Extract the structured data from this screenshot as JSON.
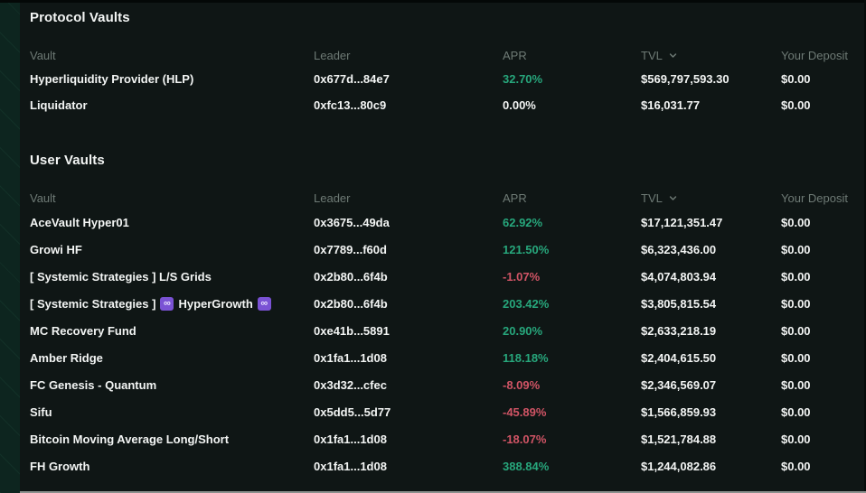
{
  "colors": {
    "positive": "#27a77c",
    "negative": "#d05465",
    "header_text": "#6e7a75",
    "body_text": "#f3f5f4",
    "badge_purple": "#7a52d4",
    "main_background": "#0f1615",
    "side_background": "#0d251f"
  },
  "protocol_vaults": {
    "title": "Protocol Vaults",
    "columns": [
      {
        "label": "Vault"
      },
      {
        "label": "Leader"
      },
      {
        "label": "APR"
      },
      {
        "label": "TVL",
        "sort_icon": "chevron-down-icon"
      },
      {
        "label": "Your Deposit"
      }
    ],
    "rows": [
      {
        "vault": "Hyperliquidity Provider (HLP)",
        "leader": "0x677d...84e7",
        "apr": "32.70%",
        "tvl": "$569,797,593.30",
        "deposit": "$0.00"
      },
      {
        "vault": "Liquidator",
        "leader": "0xfc13...80c9",
        "apr": "0.00%",
        "tvl": "$16,031.77",
        "deposit": "$0.00"
      }
    ]
  },
  "user_vaults": {
    "title": "User Vaults",
    "columns": [
      {
        "label": "Vault"
      },
      {
        "label": "Leader"
      },
      {
        "label": "APR"
      },
      {
        "label": "TVL",
        "sort_icon": "chevron-down-icon"
      },
      {
        "label": "Your Deposit"
      }
    ],
    "rows": [
      {
        "vault": "AceVault Hyper01",
        "leader": "0x3675...49da",
        "apr": "62.92%",
        "tvl": "$17,121,351.47",
        "deposit": "$0.00"
      },
      {
        "vault": "Growi HF",
        "leader": "0x7789...f60d",
        "apr": "121.50%",
        "tvl": "$6,323,436.00",
        "deposit": "$0.00"
      },
      {
        "vault": "[ Systemic Strategies ] L/S Grids",
        "leader": "0x2b80...6f4b",
        "apr": "-1.07%",
        "tvl": "$4,074,803.94",
        "deposit": "$0.00"
      },
      {
        "vault": [
          {
            "type": "text",
            "value": "[ Systemic Strategies ]"
          },
          {
            "type": "badge",
            "icon": "infinity-badge",
            "value": "∞"
          },
          {
            "type": "text",
            "value": "HyperGrowth"
          },
          {
            "type": "badge",
            "icon": "infinity-badge",
            "value": "∞"
          }
        ],
        "leader": "0x2b80...6f4b",
        "apr": "203.42%",
        "tvl": "$3,805,815.54",
        "deposit": "$0.00"
      },
      {
        "vault": "MC Recovery Fund",
        "leader": "0xe41b...5891",
        "apr": "20.90%",
        "tvl": "$2,633,218.19",
        "deposit": "$0.00"
      },
      {
        "vault": "Amber Ridge",
        "leader": "0x1fa1...1d08",
        "apr": "118.18%",
        "tvl": "$2,404,615.50",
        "deposit": "$0.00"
      },
      {
        "vault": "FC Genesis - Quantum",
        "leader": "0x3d32...cfec",
        "apr": "-8.09%",
        "tvl": "$2,346,569.07",
        "deposit": "$0.00"
      },
      {
        "vault": "Sifu",
        "leader": "0x5dd5...5d77",
        "apr": "-45.89%",
        "tvl": "$1,566,859.93",
        "deposit": "$0.00"
      },
      {
        "vault": "Bitcoin Moving Average Long/Short",
        "leader": "0x1fa1...1d08",
        "apr": "-18.07%",
        "tvl": "$1,521,784.88",
        "deposit": "$0.00"
      },
      {
        "vault": "FH Growth",
        "leader": "0x1fa1...1d08",
        "apr": "388.84%",
        "tvl": "$1,244,082.86",
        "deposit": "$0.00"
      }
    ]
  }
}
